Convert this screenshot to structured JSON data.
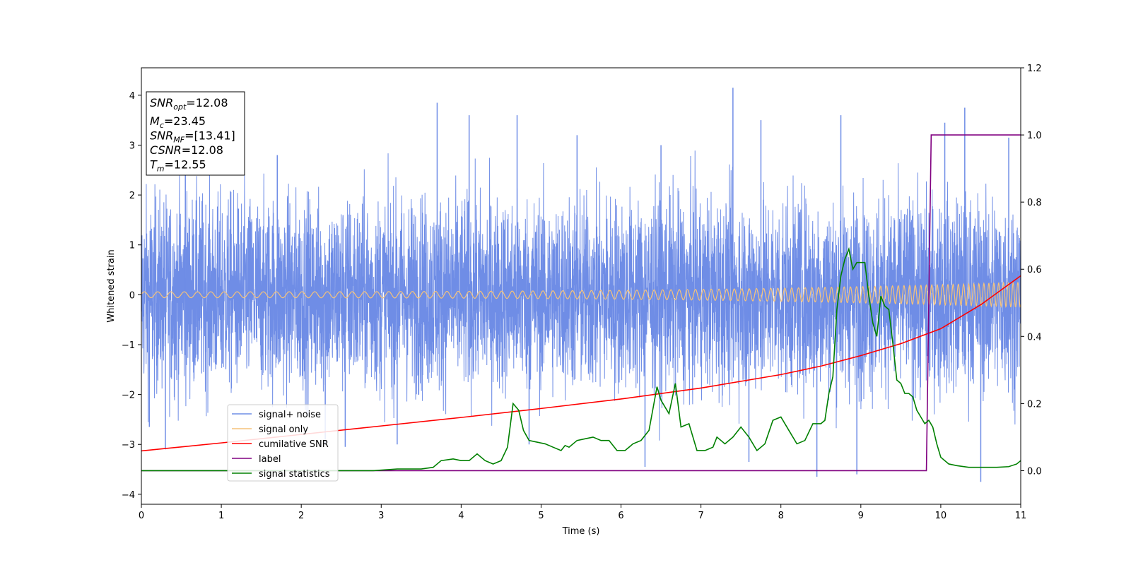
{
  "chart_data": {
    "type": "line",
    "title": "",
    "xlabel": "Time (s)",
    "ylabel": "Whitened strain",
    "xlim": [
      0,
      11
    ],
    "ylim": [
      -4.2,
      4.55
    ],
    "y2lim": [
      -0.1,
      1.2
    ],
    "xticks": [
      "0",
      "1",
      "2",
      "3",
      "4",
      "5",
      "6",
      "7",
      "8",
      "9",
      "10",
      "11"
    ],
    "yticks": [
      "−4",
      "−3",
      "−2",
      "−1",
      "0",
      "1",
      "2",
      "3",
      "4"
    ],
    "y2ticks": [
      "0.0",
      "0.2",
      "0.4",
      "0.6",
      "0.8",
      "1.0",
      "1.2"
    ],
    "grid": false,
    "legend_position": "lower-left",
    "legend": [
      {
        "label": "signal+ noise",
        "color": "#6f8de6"
      },
      {
        "label": "signal only",
        "color": "#f5c27a"
      },
      {
        "label": "cumilative SNR",
        "color": "#ff0000"
      },
      {
        "label": "label",
        "color": "#800080"
      },
      {
        "label": "signal statistics",
        "color": "#008000"
      }
    ],
    "annotation": {
      "lines": [
        {
          "sym": "SNR",
          "sub": "opt",
          "value": "=12.08"
        },
        {
          "sym": "M",
          "sub": "c",
          "value": "=23.45"
        },
        {
          "sym": "SNR",
          "sub": "MF",
          "value": "=[13.41]"
        },
        {
          "sym": "CSNR",
          "sub": "",
          "value": "=12.08"
        },
        {
          "sym": "T",
          "sub": "m",
          "value": "=12.55"
        }
      ]
    },
    "series": [
      {
        "name": "signal+ noise",
        "axis": "left",
        "color": "#6f8de6",
        "noise_envelope": {
          "x": [
            0,
            11
          ],
          "typical_range": [
            -2.3,
            2.3
          ]
        },
        "spikes": [
          {
            "x": 0.1,
            "y": -2.65
          },
          {
            "x": 0.3,
            "y": -3.1
          },
          {
            "x": 0.55,
            "y": 2.55
          },
          {
            "x": 1.7,
            "y": 2.8
          },
          {
            "x": 2.3,
            "y": -3.0
          },
          {
            "x": 2.55,
            "y": -3.05
          },
          {
            "x": 3.2,
            "y": -3.0
          },
          {
            "x": 3.7,
            "y": 3.85
          },
          {
            "x": 4.1,
            "y": 3.6
          },
          {
            "x": 4.7,
            "y": 3.6
          },
          {
            "x": 4.85,
            "y": -3.0
          },
          {
            "x": 5.45,
            "y": 3.2
          },
          {
            "x": 6.3,
            "y": -3.45
          },
          {
            "x": 6.5,
            "y": 3.0
          },
          {
            "x": 7.4,
            "y": 4.15
          },
          {
            "x": 7.6,
            "y": -3.35
          },
          {
            "x": 7.75,
            "y": 3.5
          },
          {
            "x": 8.45,
            "y": -3.65
          },
          {
            "x": 8.75,
            "y": 3.6
          },
          {
            "x": 8.95,
            "y": -3.6
          },
          {
            "x": 10.05,
            "y": 3.45
          },
          {
            "x": 10.3,
            "y": 3.75
          },
          {
            "x": 10.5,
            "y": -3.75
          },
          {
            "x": 10.85,
            "y": 3.15
          }
        ]
      },
      {
        "name": "signal only",
        "axis": "left",
        "color": "#f5c27a",
        "chirp": {
          "start_amplitude": 0.06,
          "end_amplitude": 0.25,
          "start_freq": 6,
          "end_freq": 17
        }
      },
      {
        "name": "cumilative SNR",
        "axis": "left",
        "color": "#ff0000",
        "x": [
          0,
          1,
          2,
          3,
          4,
          5,
          6,
          7,
          8,
          8.5,
          9,
          9.5,
          10,
          10.5,
          11
        ],
        "values": [
          -3.13,
          -2.97,
          -2.8,
          -2.63,
          -2.46,
          -2.28,
          -2.09,
          -1.87,
          -1.6,
          -1.43,
          -1.22,
          -0.98,
          -0.68,
          -0.2,
          0.38
        ]
      },
      {
        "name": "label",
        "axis": "right",
        "color": "#800080",
        "x": [
          0,
          9.82,
          9.88,
          11
        ],
        "values": [
          0,
          0,
          1.0,
          1.0
        ]
      },
      {
        "name": "signal statistics",
        "axis": "right",
        "color": "#008000",
        "x": [
          0,
          0.5,
          1,
          1.5,
          2,
          2.5,
          2.9,
          3.2,
          3.5,
          3.65,
          3.75,
          3.9,
          4.0,
          4.1,
          4.2,
          4.3,
          4.4,
          4.5,
          4.58,
          4.65,
          4.72,
          4.78,
          4.85,
          4.95,
          5.05,
          5.15,
          5.25,
          5.3,
          5.35,
          5.45,
          5.55,
          5.65,
          5.75,
          5.85,
          5.95,
          6.05,
          6.15,
          6.25,
          6.35,
          6.45,
          6.5,
          6.6,
          6.68,
          6.75,
          6.85,
          6.95,
          7.05,
          7.15,
          7.2,
          7.3,
          7.4,
          7.5,
          7.6,
          7.7,
          7.8,
          7.9,
          8.0,
          8.1,
          8.2,
          8.3,
          8.4,
          8.5,
          8.55,
          8.6,
          8.65,
          8.7,
          8.75,
          8.8,
          8.85,
          8.9,
          8.95,
          9.05,
          9.1,
          9.15,
          9.2,
          9.25,
          9.3,
          9.35,
          9.4,
          9.45,
          9.5,
          9.55,
          9.6,
          9.65,
          9.7,
          9.75,
          9.8,
          9.85,
          9.9,
          9.95,
          10.0,
          10.1,
          10.2,
          10.35,
          10.5,
          10.7,
          10.85,
          10.95,
          11.0
        ],
        "values": [
          0,
          0,
          0,
          0,
          0,
          0,
          0,
          0.005,
          0.005,
          0.01,
          0.03,
          0.035,
          0.03,
          0.03,
          0.05,
          0.03,
          0.02,
          0.03,
          0.07,
          0.2,
          0.18,
          0.12,
          0.09,
          0.085,
          0.08,
          0.07,
          0.06,
          0.075,
          0.07,
          0.09,
          0.095,
          0.1,
          0.09,
          0.09,
          0.06,
          0.06,
          0.08,
          0.09,
          0.12,
          0.25,
          0.21,
          0.17,
          0.26,
          0.13,
          0.14,
          0.06,
          0.06,
          0.07,
          0.1,
          0.08,
          0.1,
          0.13,
          0.1,
          0.06,
          0.08,
          0.15,
          0.16,
          0.12,
          0.08,
          0.09,
          0.14,
          0.14,
          0.15,
          0.23,
          0.28,
          0.48,
          0.58,
          0.63,
          0.66,
          0.6,
          0.62,
          0.62,
          0.52,
          0.44,
          0.4,
          0.52,
          0.49,
          0.48,
          0.38,
          0.27,
          0.26,
          0.23,
          0.23,
          0.22,
          0.18,
          0.16,
          0.14,
          0.15,
          0.13,
          0.08,
          0.04,
          0.02,
          0.015,
          0.01,
          0.01,
          0.01,
          0.012,
          0.02,
          0.03
        ]
      }
    ]
  }
}
